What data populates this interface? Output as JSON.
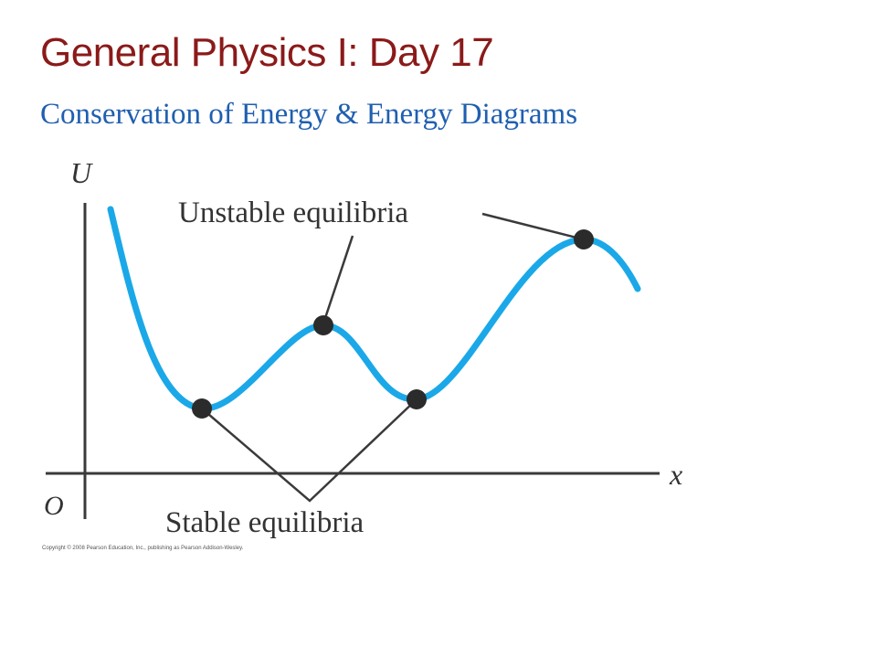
{
  "slide": {
    "title": "General Physics I: Day 17",
    "subtitle": "Conservation of Energy & Energy Diagrams",
    "copyright": "Copyright © 2008 Pearson Education, Inc., publishing as Pearson Addison-Wesley."
  },
  "diagram": {
    "y_axis_label": "U",
    "x_axis_label": "x",
    "origin_label": "O",
    "unstable_label": "Unstable equilibria",
    "stable_label": "Stable equilibria",
    "points": [
      {
        "kind": "stable"
      },
      {
        "kind": "unstable"
      },
      {
        "kind": "stable"
      },
      {
        "kind": "unstable"
      }
    ]
  },
  "colors": {
    "title": "#8B1A1A",
    "subtitle": "#1F5FB0",
    "curve": "#1BA8E8",
    "axis": "#3A3A3A",
    "dot": "#2B2B2B",
    "label": "#333333"
  }
}
